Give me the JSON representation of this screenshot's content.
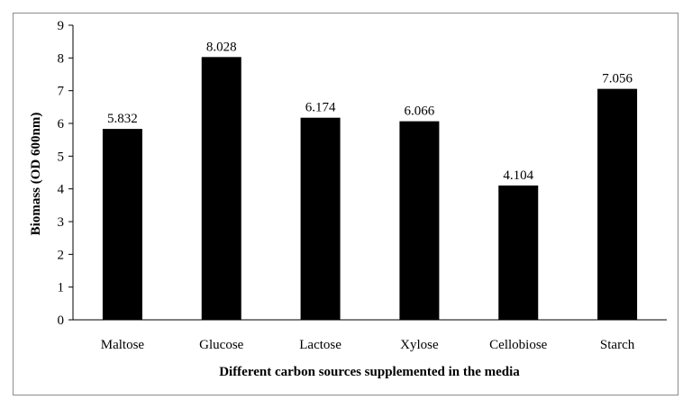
{
  "chart_data": {
    "type": "bar",
    "categories": [
      "Maltose",
      "Glucose",
      "Lactose",
      "Xylose",
      "Cellobiose",
      "Starch"
    ],
    "values": [
      5.832,
      8.028,
      6.174,
      6.066,
      4.104,
      7.056
    ],
    "data_labels": [
      "5.832",
      "8.028",
      "6.174",
      "6.066",
      "4.104",
      "7.056"
    ],
    "xlabel": "Different carbon sources supplemented in the media",
    "ylabel": "Biomass (OD 600nm)",
    "ylim": [
      0,
      9
    ],
    "yticks": [
      "0",
      "1",
      "2",
      "3",
      "4",
      "5",
      "6",
      "7",
      "8",
      "9"
    ],
    "bar_color": "#000000",
    "grid": false,
    "legend": "none"
  }
}
